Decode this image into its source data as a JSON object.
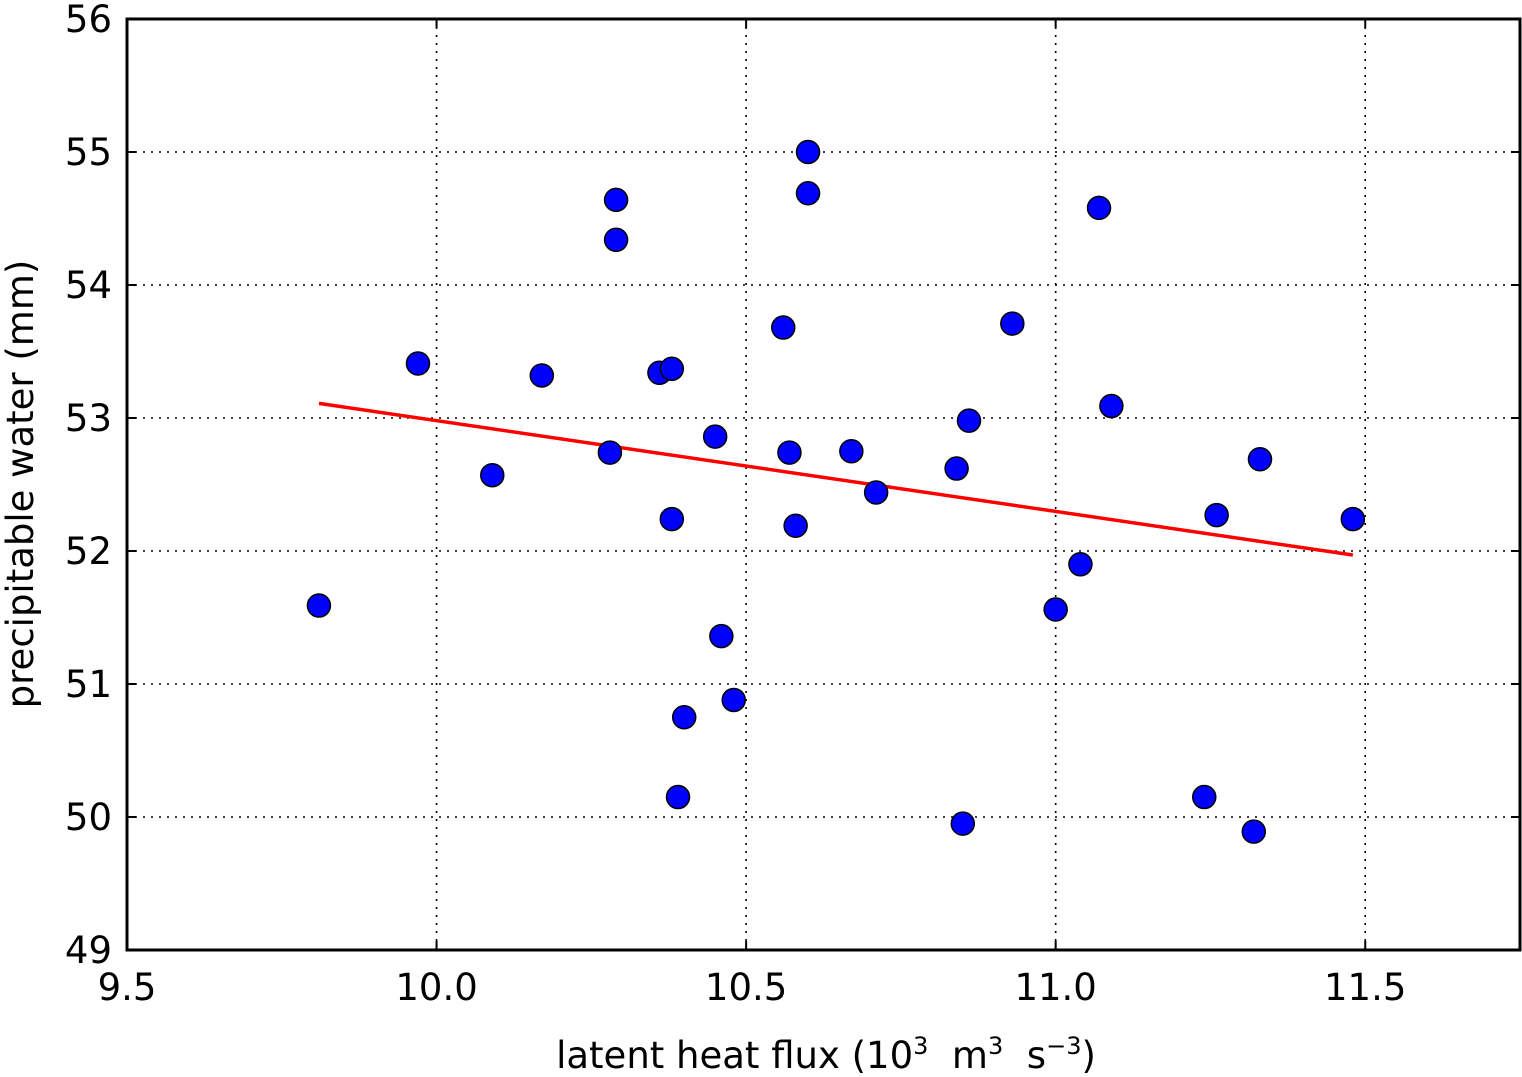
{
  "chart_data": {
    "type": "scatter",
    "title": "",
    "xlabel": "latent heat flux (10",
    "xlabel_parts": {
      "base": "latent heat flux (10",
      "sup1": "3",
      "mid1": "  m",
      "sup2": "3",
      "mid2": "  s",
      "sup3": "−3",
      "end": ")"
    },
    "ylabel": "precipitable water (mm)",
    "xlim": [
      9.5,
      11.75
    ],
    "ylim": [
      49,
      56
    ],
    "xticks": [
      9.5,
      10.0,
      10.5,
      11.0,
      11.5
    ],
    "xtick_labels": [
      "9.5",
      "10.0",
      "10.5",
      "11.0",
      "11.5"
    ],
    "yticks": [
      49,
      50,
      51,
      52,
      53,
      54,
      55,
      56
    ],
    "ytick_labels": [
      "49",
      "50",
      "51",
      "52",
      "53",
      "54",
      "55",
      "56"
    ],
    "grid": true,
    "colors": {
      "points": "#0000ff",
      "point_edge": "#000000",
      "fit_line": "#ff0000"
    },
    "series": [
      {
        "kind": "points",
        "x": [
          9.81,
          9.97,
          10.09,
          10.17,
          10.28,
          10.29,
          10.29,
          10.36,
          10.38,
          10.38,
          10.39,
          10.4,
          10.45,
          10.46,
          10.48,
          10.56,
          10.57,
          10.58,
          10.6,
          10.6,
          10.67,
          10.71,
          10.84,
          10.85,
          10.86,
          10.93,
          11.0,
          11.04,
          11.07,
          11.09,
          11.24,
          11.26,
          11.32,
          11.33,
          11.48
        ],
        "y": [
          51.59,
          53.41,
          52.57,
          53.32,
          52.74,
          54.34,
          54.64,
          53.34,
          53.37,
          52.24,
          50.15,
          50.75,
          52.86,
          51.36,
          50.88,
          53.68,
          52.74,
          52.19,
          55.0,
          54.69,
          52.75,
          52.44,
          52.62,
          49.95,
          52.98,
          53.71,
          51.56,
          51.9,
          54.58,
          53.09,
          50.15,
          52.27,
          49.89,
          52.69,
          52.24
        ]
      },
      {
        "kind": "fit_line",
        "x": [
          9.81,
          11.48
        ],
        "y": [
          53.11,
          51.97
        ]
      }
    ]
  }
}
